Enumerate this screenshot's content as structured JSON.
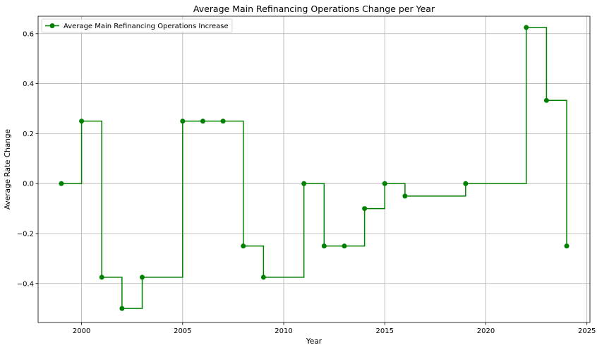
{
  "chart_data": {
    "type": "line",
    "title": "Average Main Refinancing Operations Change per Year",
    "xlabel": "Year",
    "ylabel": "Average Rate Change",
    "xlim": [
      1997.85,
      2025.15
    ],
    "ylim": [
      -0.556,
      0.67
    ],
    "xticks": [
      2000,
      2005,
      2010,
      2015,
      2020,
      2025
    ],
    "yticks": [
      -0.4,
      -0.2,
      0.0,
      0.2,
      0.4,
      0.6
    ],
    "xtick_labels": [
      "2000",
      "2005",
      "2010",
      "2015",
      "2020",
      "2025"
    ],
    "ytick_labels": [
      "−0.4",
      "−0.2",
      "0.0",
      "0.2",
      "0.4",
      "0.6"
    ],
    "grid": true,
    "step": "post",
    "legend_position": "top-left",
    "series": [
      {
        "name": "Average Main Refinancing Operations Increase",
        "color": "#008000",
        "marker": "circle",
        "x": [
          1999,
          2000,
          2001,
          2002,
          2003,
          2005,
          2006,
          2007,
          2008,
          2009,
          2011,
          2012,
          2013,
          2014,
          2015,
          2016,
          2019,
          2022,
          2023,
          2024
        ],
        "y": [
          0.0,
          0.25,
          -0.375,
          -0.5,
          -0.375,
          0.25,
          0.25,
          0.25,
          -0.25,
          -0.375,
          0.0,
          -0.25,
          -0.25,
          -0.1,
          0.0,
          -0.05,
          0.0,
          0.625,
          0.333,
          -0.25
        ]
      }
    ]
  }
}
